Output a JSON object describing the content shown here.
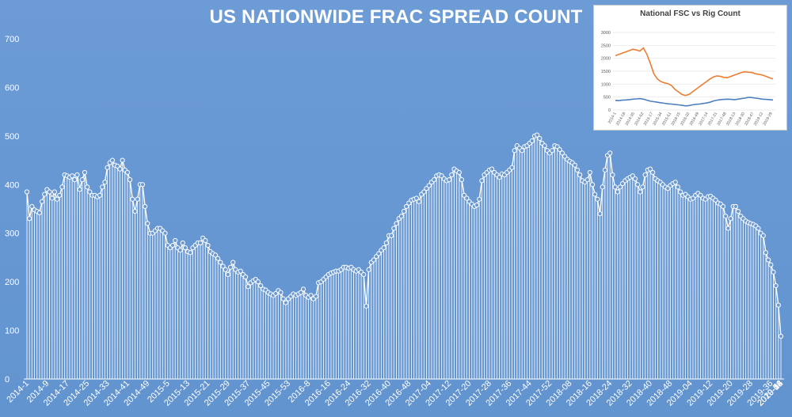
{
  "title": "US NATIONWIDE FRAC SPREAD COUNT",
  "colors": {
    "background": "#6b9ad4",
    "series": "#ffffff",
    "inset_rig": "#ed7d31",
    "inset_fsc": "#4f7fbf"
  },
  "chart_data": [
    {
      "type": "line",
      "title": "US NATIONWIDE FRAC SPREAD COUNT",
      "xlabel": "",
      "ylabel": "",
      "ylim": [
        0,
        700
      ],
      "yticks": [
        0,
        100,
        200,
        300,
        400,
        500,
        600,
        700
      ],
      "grid": false,
      "markers": "circle",
      "drop_lines": true,
      "x_tick_labels": [
        "2014-1",
        "2014-9",
        "2014-17",
        "2014-25",
        "2014-33",
        "2014-41",
        "2014-49",
        "2015-5",
        "2015-13",
        "2015-21",
        "2015-29",
        "2015-37",
        "2015-45",
        "2015-53",
        "2016-8",
        "2016-16",
        "2016-24",
        "2016-32",
        "2016-40",
        "2016-48",
        "2017-04",
        "2017-12",
        "2017-20",
        "2017-28",
        "2017-36",
        "2017-44",
        "2017-52",
        "2018-08",
        "2018-16",
        "2018-24",
        "2018-32",
        "2018-40",
        "2018-48",
        "2019-04",
        "2019-12",
        "2019-20",
        "2019-28",
        "2019-36",
        "2019-44",
        "2019-52",
        "2020-08",
        "2020-16"
      ],
      "series": [
        {
          "values": [
            385,
            330,
            355,
            348,
            345,
            342,
            365,
            380,
            390,
            385,
            372,
            385,
            370,
            378,
            395,
            420,
            418,
            415,
            418,
            410,
            420,
            390,
            410,
            425,
            395,
            385,
            378,
            378,
            375,
            378,
            395,
            405,
            435,
            445,
            450,
            440,
            438,
            432,
            450,
            430,
            425,
            410,
            370,
            345,
            370,
            400,
            400,
            355,
            320,
            300,
            300,
            305,
            310,
            310,
            305,
            300,
            275,
            270,
            275,
            285,
            270,
            265,
            280,
            270,
            262,
            260,
            270,
            275,
            280,
            280,
            290,
            285,
            275,
            262,
            258,
            255,
            248,
            240,
            232,
            225,
            215,
            230,
            240,
            225,
            220,
            222,
            215,
            210,
            190,
            198,
            202,
            205,
            200,
            192,
            185,
            183,
            178,
            175,
            172,
            176,
            182,
            178,
            165,
            157,
            165,
            170,
            175,
            172,
            175,
            178,
            185,
            172,
            168,
            172,
            165,
            170,
            198,
            200,
            205,
            210,
            215,
            218,
            220,
            222,
            222,
            225,
            230,
            230,
            228,
            230,
            225,
            222,
            225,
            220,
            215,
            150,
            225,
            240,
            245,
            252,
            258,
            265,
            270,
            280,
            295,
            295,
            310,
            320,
            330,
            335,
            345,
            355,
            362,
            368,
            370,
            372,
            365,
            380,
            385,
            392,
            398,
            405,
            410,
            418,
            420,
            418,
            412,
            408,
            410,
            420,
            432,
            428,
            425,
            410,
            378,
            372,
            365,
            360,
            355,
            358,
            370,
            408,
            420,
            425,
            430,
            432,
            425,
            420,
            415,
            422,
            420,
            425,
            430,
            435,
            470,
            480,
            475,
            470,
            478,
            480,
            485,
            490,
            500,
            502,
            495,
            485,
            480,
            470,
            465,
            470,
            480,
            478,
            472,
            465,
            458,
            452,
            448,
            445,
            440,
            430,
            420,
            408,
            405,
            410,
            425,
            400,
            380,
            370,
            340,
            395,
            430,
            460,
            465,
            420,
            395,
            385,
            395,
            402,
            408,
            412,
            415,
            418,
            412,
            400,
            385,
            395,
            420,
            430,
            432,
            425,
            412,
            408,
            405,
            400,
            395,
            392,
            398,
            402,
            405,
            395,
            385,
            378,
            380,
            375,
            370,
            372,
            378,
            382,
            378,
            372,
            370,
            375,
            376,
            372,
            368,
            362,
            360,
            355,
            335,
            310,
            330,
            355,
            355,
            345,
            335,
            330,
            325,
            322,
            320,
            318,
            315,
            310,
            300,
            295,
            260,
            245,
            235,
            220,
            192,
            152,
            88
          ]
        }
      ]
    },
    {
      "type": "line",
      "title": "National FSC vs Rig Count",
      "ylim": [
        0,
        3000
      ],
      "yticks": [
        0,
        500,
        1000,
        1500,
        2000,
        2500,
        3000
      ],
      "grid": true,
      "x_tick_labels": [
        "2014-1",
        "2014-18",
        "2014-35",
        "2014-52",
        "2015-17",
        "2015-34",
        "2015-51",
        "2016-15",
        "2016-32",
        "2016-49",
        "2017-14",
        "2017-31",
        "2017-48",
        "2018-13",
        "2018-30",
        "2018-47",
        "2019-12",
        "2019-29"
      ],
      "series": [
        {
          "values": [
            2100,
            2150,
            2200,
            2250,
            2300,
            2350,
            2320,
            2280,
            2400,
            2150,
            1800,
            1400,
            1200,
            1100,
            1050,
            1020,
            950,
            800,
            700,
            600,
            560,
            600,
            700,
            800,
            900,
            1000,
            1100,
            1200,
            1280,
            1320,
            1300,
            1260,
            1250,
            1300,
            1350,
            1400,
            1450,
            1480,
            1460,
            1450,
            1400,
            1380,
            1350,
            1300,
            1250,
            1200
          ]
        },
        {
          "values": [
            370,
            360,
            380,
            390,
            400,
            420,
            430,
            440,
            420,
            380,
            340,
            320,
            300,
            280,
            260,
            240,
            230,
            210,
            200,
            180,
            160,
            170,
            200,
            220,
            230,
            250,
            270,
            300,
            350,
            380,
            400,
            410,
            420,
            410,
            400,
            420,
            440,
            460,
            490,
            480,
            460,
            440,
            420,
            410,
            400,
            390
          ]
        }
      ]
    }
  ]
}
